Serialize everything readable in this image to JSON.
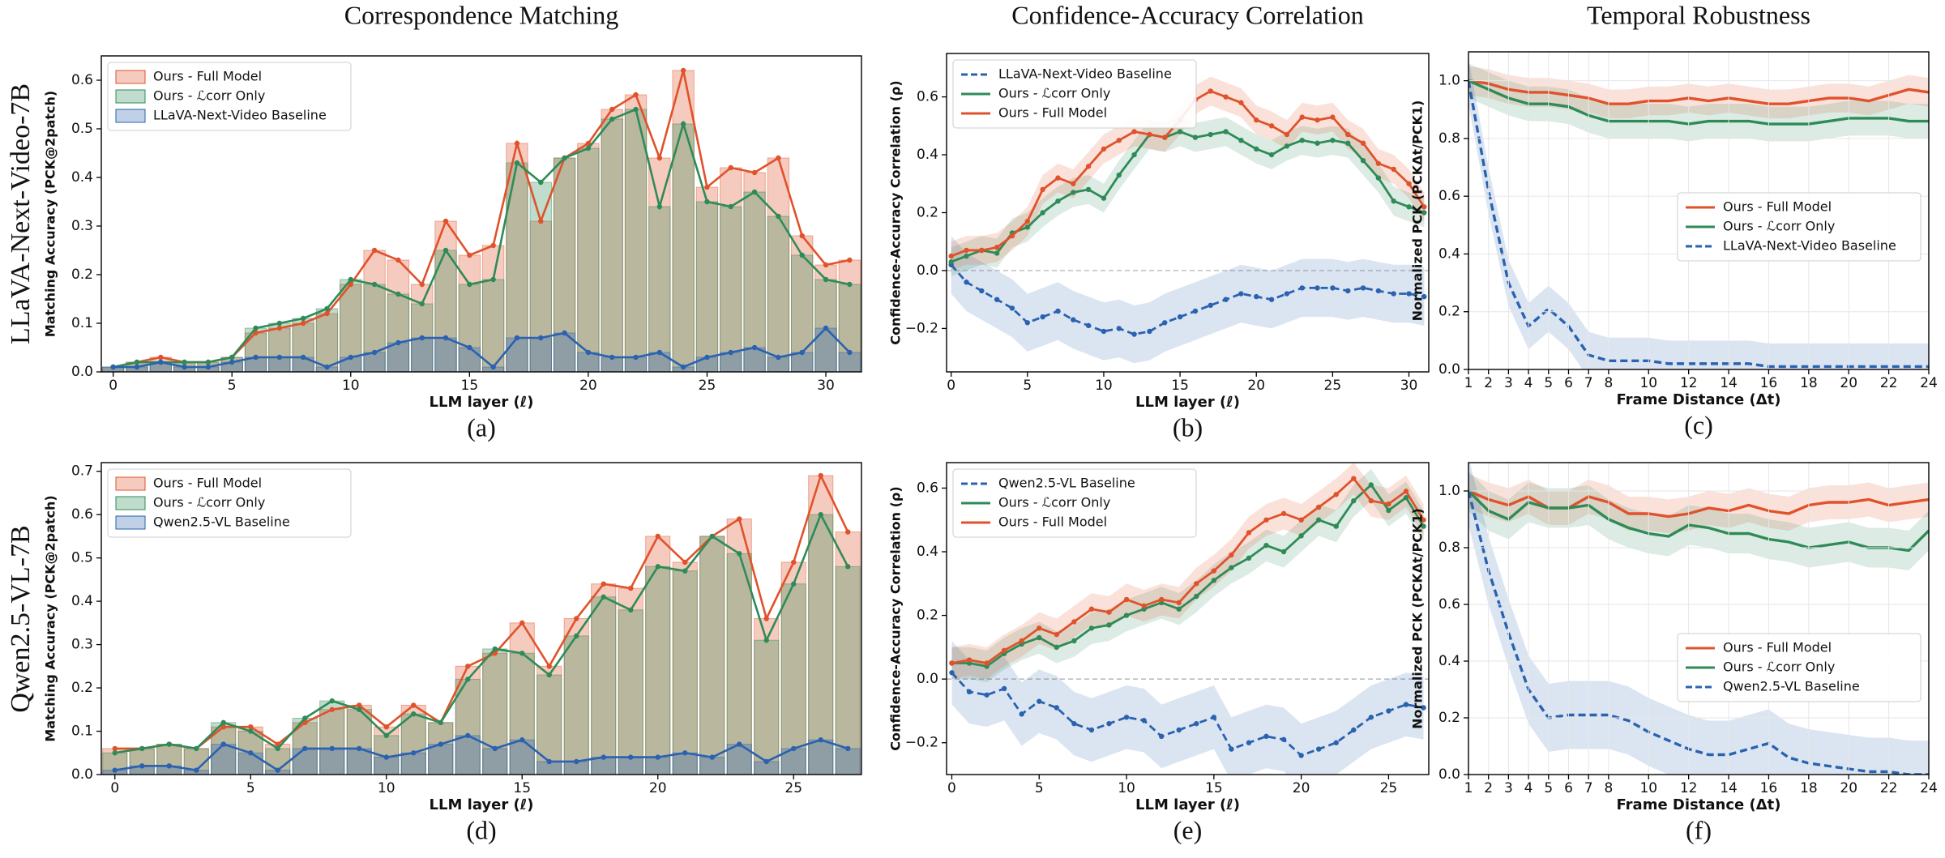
{
  "row_labels": [
    "LLaVA-Next-Video-7B",
    "Qwen2.5-VL-7B"
  ],
  "chart_data": [
    {
      "type": "bar",
      "title": "Correspondence Matching",
      "caption": "(a)",
      "x_label": "LLM layer (ℓ)",
      "y_label": "Matching Accuracy (PCK@2patch)",
      "x": [
        0,
        1,
        2,
        3,
        4,
        5,
        6,
        7,
        8,
        9,
        10,
        11,
        12,
        13,
        14,
        15,
        16,
        17,
        18,
        19,
        20,
        21,
        22,
        23,
        24,
        25,
        26,
        27,
        28,
        29,
        30,
        31
      ],
      "xlim": [
        -0.5,
        31.5
      ],
      "xticks": [
        0,
        5,
        10,
        15,
        20,
        25,
        30
      ],
      "ylim": [
        0,
        0.65
      ],
      "yticks": [
        {
          "value": 0,
          "label": "0.0"
        },
        0.1,
        0.2,
        0.3,
        0.4,
        0.5,
        0.6
      ],
      "legend": "upper left",
      "grid": false,
      "markers": true,
      "series": [
        {
          "name": "Ours - Full Model",
          "color": "#e0522b",
          "values": [
            0.01,
            0.02,
            0.03,
            0.02,
            0.02,
            0.03,
            0.08,
            0.09,
            0.1,
            0.12,
            0.18,
            0.25,
            0.23,
            0.18,
            0.31,
            0.24,
            0.26,
            0.47,
            0.31,
            0.44,
            0.47,
            0.54,
            0.57,
            0.44,
            0.62,
            0.38,
            0.42,
            0.41,
            0.44,
            0.28,
            0.22,
            0.23
          ]
        },
        {
          "name": "Ours - ℒcorr Only",
          "color": "#2e8b57",
          "values": [
            0.01,
            0.02,
            0.02,
            0.02,
            0.02,
            0.03,
            0.09,
            0.1,
            0.11,
            0.13,
            0.19,
            0.18,
            0.16,
            0.14,
            0.25,
            0.18,
            0.19,
            0.43,
            0.39,
            0.44,
            0.46,
            0.52,
            0.54,
            0.34,
            0.51,
            0.35,
            0.34,
            0.37,
            0.32,
            0.24,
            0.19,
            0.18
          ]
        },
        {
          "name": "LLaVA-Next-Video Baseline",
          "color": "#2a62b0",
          "values": [
            0.01,
            0.01,
            0.02,
            0.01,
            0.01,
            0.02,
            0.03,
            0.03,
            0.03,
            0.01,
            0.03,
            0.04,
            0.06,
            0.07,
            0.07,
            0.05,
            0.01,
            0.07,
            0.07,
            0.08,
            0.04,
            0.03,
            0.03,
            0.04,
            0.01,
            0.03,
            0.04,
            0.05,
            0.03,
            0.04,
            0.09,
            0.04
          ]
        }
      ]
    },
    {
      "type": "line",
      "title": "Confidence-Accuracy Correlation",
      "caption": "(b)",
      "x_label": "LLM layer (ℓ)",
      "y_label": "Confidence-Accuracy Correlation (ρ)",
      "x": [
        0,
        1,
        2,
        3,
        4,
        5,
        6,
        7,
        8,
        9,
        10,
        11,
        12,
        13,
        14,
        15,
        16,
        17,
        18,
        19,
        20,
        21,
        22,
        23,
        24,
        25,
        26,
        27,
        28,
        29,
        30,
        31
      ],
      "xlim": [
        -0.3,
        31.3
      ],
      "xticks": [
        0,
        5,
        10,
        15,
        20,
        25,
        30
      ],
      "ylim": [
        -0.35,
        0.75
      ],
      "yticks": [
        {
          "value": -0.2,
          "label": "−0.2"
        },
        {
          "value": 0,
          "label": "0.0"
        },
        0.2,
        0.4,
        0.6
      ],
      "legend": "upper left",
      "grid": false,
      "zero_line": true,
      "markers": true,
      "series": [
        {
          "name": "LLaVA-Next-Video Baseline",
          "color": "#2a62b0",
          "dashed": true,
          "ci": 0.1,
          "values": [
            0.02,
            -0.04,
            -0.07,
            -0.1,
            -0.13,
            -0.18,
            -0.16,
            -0.14,
            -0.17,
            -0.19,
            -0.21,
            -0.2,
            -0.22,
            -0.21,
            -0.18,
            -0.16,
            -0.14,
            -0.12,
            -0.1,
            -0.08,
            -0.09,
            -0.1,
            -0.08,
            -0.06,
            -0.06,
            -0.06,
            -0.07,
            -0.06,
            -0.07,
            -0.08,
            -0.08,
            -0.09
          ]
        },
        {
          "name": "Ours - ℒcorr Only",
          "color": "#2e8b57",
          "ci": 0.05,
          "values": [
            0.03,
            0.05,
            0.07,
            0.06,
            0.13,
            0.15,
            0.2,
            0.24,
            0.27,
            0.28,
            0.25,
            0.33,
            0.4,
            0.47,
            0.46,
            0.48,
            0.46,
            0.47,
            0.48,
            0.45,
            0.42,
            0.4,
            0.43,
            0.45,
            0.44,
            0.45,
            0.44,
            0.38,
            0.32,
            0.24,
            0.22,
            0.2
          ]
        },
        {
          "name": "Ours - Full Model",
          "color": "#e0522b",
          "ci": 0.05,
          "values": [
            0.05,
            0.07,
            0.07,
            0.08,
            0.12,
            0.17,
            0.28,
            0.32,
            0.3,
            0.36,
            0.42,
            0.45,
            0.48,
            0.47,
            0.46,
            0.52,
            0.59,
            0.62,
            0.6,
            0.58,
            0.52,
            0.5,
            0.47,
            0.53,
            0.52,
            0.53,
            0.47,
            0.44,
            0.37,
            0.35,
            0.3,
            0.22
          ]
        }
      ]
    },
    {
      "type": "line",
      "title": "Temporal Robustness",
      "caption": "(c)",
      "x_label": "Frame Distance (Δt)",
      "y_label": "Normalized PCK (PCKΔt/PCK1)",
      "x": [
        1,
        2,
        3,
        4,
        5,
        6,
        7,
        8,
        9,
        10,
        11,
        12,
        13,
        14,
        15,
        16,
        17,
        18,
        19,
        20,
        21,
        22,
        23,
        24
      ],
      "xlim": [
        1,
        24
      ],
      "xticks": [
        1,
        2,
        3,
        4,
        5,
        6,
        7,
        8,
        10,
        12,
        14,
        16,
        18,
        20,
        22,
        24
      ],
      "ylim": [
        0,
        1.1
      ],
      "yticks": [
        {
          "value": 0,
          "label": "0.0"
        },
        0.2,
        0.4,
        0.6,
        0.8,
        {
          "value": 1,
          "label": "1.0"
        }
      ],
      "legend": "center right",
      "grid": true,
      "markers": false,
      "series": [
        {
          "name": "Ours - Full Model",
          "color": "#e0522b",
          "ci": 0.05,
          "values": [
            1.0,
            0.99,
            0.97,
            0.96,
            0.96,
            0.95,
            0.94,
            0.92,
            0.92,
            0.93,
            0.93,
            0.94,
            0.93,
            0.94,
            0.93,
            0.92,
            0.92,
            0.93,
            0.94,
            0.94,
            0.93,
            0.95,
            0.97,
            0.96
          ]
        },
        {
          "name": "Ours - ℒcorr Only",
          "color": "#2e8b57",
          "ci": 0.06,
          "values": [
            1.0,
            0.97,
            0.94,
            0.92,
            0.92,
            0.91,
            0.88,
            0.86,
            0.86,
            0.86,
            0.86,
            0.85,
            0.86,
            0.86,
            0.86,
            0.85,
            0.85,
            0.85,
            0.86,
            0.87,
            0.87,
            0.87,
            0.86,
            0.86
          ]
        },
        {
          "name": "LLaVA-Next-Video Baseline",
          "color": "#2a62b0",
          "dashed": true,
          "ci": 0.08,
          "values": [
            1.0,
            0.62,
            0.3,
            0.15,
            0.21,
            0.15,
            0.05,
            0.03,
            0.03,
            0.03,
            0.02,
            0.02,
            0.02,
            0.02,
            0.02,
            0.01,
            0.01,
            0.01,
            0.01,
            0.01,
            0.01,
            0.01,
            0.01,
            0.01
          ]
        }
      ]
    },
    {
      "type": "bar",
      "caption": "(d)",
      "x_label": "LLM layer (ℓ)",
      "y_label": "Matching Accuracy (PCK@2patch)",
      "x": [
        0,
        1,
        2,
        3,
        4,
        5,
        6,
        7,
        8,
        9,
        10,
        11,
        12,
        13,
        14,
        15,
        16,
        17,
        18,
        19,
        20,
        21,
        22,
        23,
        24,
        25,
        26,
        27
      ],
      "xlim": [
        -0.5,
        27.5
      ],
      "xticks": [
        0,
        5,
        10,
        15,
        20,
        25
      ],
      "ylim": [
        0,
        0.72
      ],
      "yticks": [
        {
          "value": 0,
          "label": "0.0"
        },
        0.1,
        0.2,
        0.3,
        0.4,
        0.5,
        0.6,
        0.7
      ],
      "legend": "upper left",
      "grid": false,
      "markers": true,
      "series": [
        {
          "name": "Ours - Full Model",
          "color": "#e0522b",
          "values": [
            0.06,
            0.06,
            0.07,
            0.06,
            0.11,
            0.11,
            0.07,
            0.12,
            0.15,
            0.16,
            0.11,
            0.16,
            0.12,
            0.25,
            0.28,
            0.35,
            0.25,
            0.36,
            0.44,
            0.43,
            0.55,
            0.49,
            0.55,
            0.59,
            0.36,
            0.49,
            0.69,
            0.56
          ]
        },
        {
          "name": "Ours - ℒcorr Only",
          "color": "#2e8b57",
          "values": [
            0.05,
            0.06,
            0.07,
            0.06,
            0.12,
            0.1,
            0.06,
            0.13,
            0.17,
            0.15,
            0.09,
            0.14,
            0.12,
            0.22,
            0.29,
            0.28,
            0.23,
            0.32,
            0.41,
            0.38,
            0.48,
            0.47,
            0.55,
            0.51,
            0.31,
            0.44,
            0.6,
            0.48
          ]
        },
        {
          "name": "Qwen2.5-VL Baseline",
          "color": "#2a62b0",
          "values": [
            0.01,
            0.02,
            0.02,
            0.01,
            0.07,
            0.05,
            0.01,
            0.06,
            0.06,
            0.06,
            0.04,
            0.05,
            0.07,
            0.09,
            0.06,
            0.08,
            0.03,
            0.03,
            0.04,
            0.04,
            0.04,
            0.05,
            0.04,
            0.07,
            0.03,
            0.06,
            0.08,
            0.06
          ]
        }
      ]
    },
    {
      "type": "line",
      "caption": "(e)",
      "x_label": "LLM layer (ℓ)",
      "y_label": "Confidence-Accuracy Correlation (ρ)",
      "x": [
        0,
        1,
        2,
        3,
        4,
        5,
        6,
        7,
        8,
        9,
        10,
        11,
        12,
        13,
        14,
        15,
        16,
        17,
        18,
        19,
        20,
        21,
        22,
        23,
        24,
        25,
        26,
        27
      ],
      "xlim": [
        -0.3,
        27.3
      ],
      "xticks": [
        0,
        5,
        10,
        15,
        20,
        25
      ],
      "ylim": [
        -0.3,
        0.68
      ],
      "yticks": [
        {
          "value": -0.2,
          "label": "−0.2"
        },
        {
          "value": 0,
          "label": "0.0"
        },
        0.2,
        0.4,
        0.6
      ],
      "legend": "upper left",
      "grid": false,
      "zero_line": true,
      "markers": true,
      "series": [
        {
          "name": "Qwen2.5-VL Baseline",
          "color": "#2a62b0",
          "dashed": true,
          "ci": 0.1,
          "values": [
            0.02,
            -0.04,
            -0.05,
            -0.03,
            -0.11,
            -0.07,
            -0.09,
            -0.14,
            -0.16,
            -0.14,
            -0.12,
            -0.13,
            -0.18,
            -0.16,
            -0.14,
            -0.12,
            -0.22,
            -0.2,
            -0.18,
            -0.19,
            -0.24,
            -0.22,
            -0.2,
            -0.16,
            -0.12,
            -0.1,
            -0.08,
            -0.09
          ]
        },
        {
          "name": "Ours - ℒcorr Only",
          "color": "#2e8b57",
          "ci": 0.05,
          "values": [
            0.05,
            0.05,
            0.04,
            0.08,
            0.11,
            0.13,
            0.1,
            0.12,
            0.16,
            0.17,
            0.2,
            0.22,
            0.24,
            0.22,
            0.26,
            0.31,
            0.35,
            0.38,
            0.42,
            0.4,
            0.45,
            0.5,
            0.48,
            0.56,
            0.61,
            0.53,
            0.57,
            0.48
          ]
        },
        {
          "name": "Ours - Full Model",
          "color": "#e0522b",
          "ci": 0.05,
          "values": [
            0.05,
            0.06,
            0.05,
            0.09,
            0.12,
            0.16,
            0.14,
            0.18,
            0.22,
            0.21,
            0.25,
            0.23,
            0.25,
            0.24,
            0.3,
            0.34,
            0.39,
            0.46,
            0.5,
            0.52,
            0.5,
            0.54,
            0.58,
            0.63,
            0.56,
            0.55,
            0.59,
            0.5
          ]
        }
      ]
    },
    {
      "type": "line",
      "caption": "(f)",
      "x_label": "Frame Distance (Δt)",
      "y_label": "Normalized PCK (PCKΔt/PCK1)",
      "x": [
        1,
        2,
        3,
        4,
        5,
        6,
        7,
        8,
        9,
        10,
        11,
        12,
        13,
        14,
        15,
        16,
        17,
        18,
        19,
        20,
        21,
        22,
        23,
        24
      ],
      "xlim": [
        1,
        24
      ],
      "xticks": [
        1,
        2,
        3,
        4,
        5,
        6,
        7,
        8,
        10,
        12,
        14,
        16,
        18,
        20,
        22,
        24
      ],
      "ylim": [
        0,
        1.1
      ],
      "yticks": [
        {
          "value": 0,
          "label": "0.0"
        },
        0.2,
        0.4,
        0.6,
        0.8,
        {
          "value": 1,
          "label": "1.0"
        }
      ],
      "legend": "lower right",
      "grid": true,
      "markers": false,
      "series": [
        {
          "name": "Ours - Full Model",
          "color": "#e0522b",
          "ci": 0.06,
          "values": [
            1.0,
            0.97,
            0.95,
            0.98,
            0.94,
            0.94,
            0.98,
            0.96,
            0.92,
            0.92,
            0.91,
            0.92,
            0.94,
            0.93,
            0.95,
            0.93,
            0.92,
            0.95,
            0.96,
            0.96,
            0.97,
            0.95,
            0.96,
            0.97
          ]
        },
        {
          "name": "Ours - ℒcorr Only",
          "color": "#2e8b57",
          "ci": 0.07,
          "values": [
            1.0,
            0.93,
            0.9,
            0.96,
            0.94,
            0.94,
            0.95,
            0.9,
            0.87,
            0.85,
            0.84,
            0.88,
            0.87,
            0.85,
            0.85,
            0.83,
            0.82,
            0.8,
            0.81,
            0.82,
            0.8,
            0.8,
            0.79,
            0.86
          ]
        },
        {
          "name": "Qwen2.5-VL Baseline",
          "color": "#2a62b0",
          "dashed": true,
          "ci": 0.12,
          "values": [
            1.0,
            0.72,
            0.5,
            0.3,
            0.2,
            0.21,
            0.21,
            0.21,
            0.19,
            0.15,
            0.12,
            0.09,
            0.07,
            0.07,
            0.09,
            0.11,
            0.06,
            0.04,
            0.03,
            0.02,
            0.01,
            0.01,
            0.0,
            0.0
          ]
        }
      ]
    }
  ]
}
